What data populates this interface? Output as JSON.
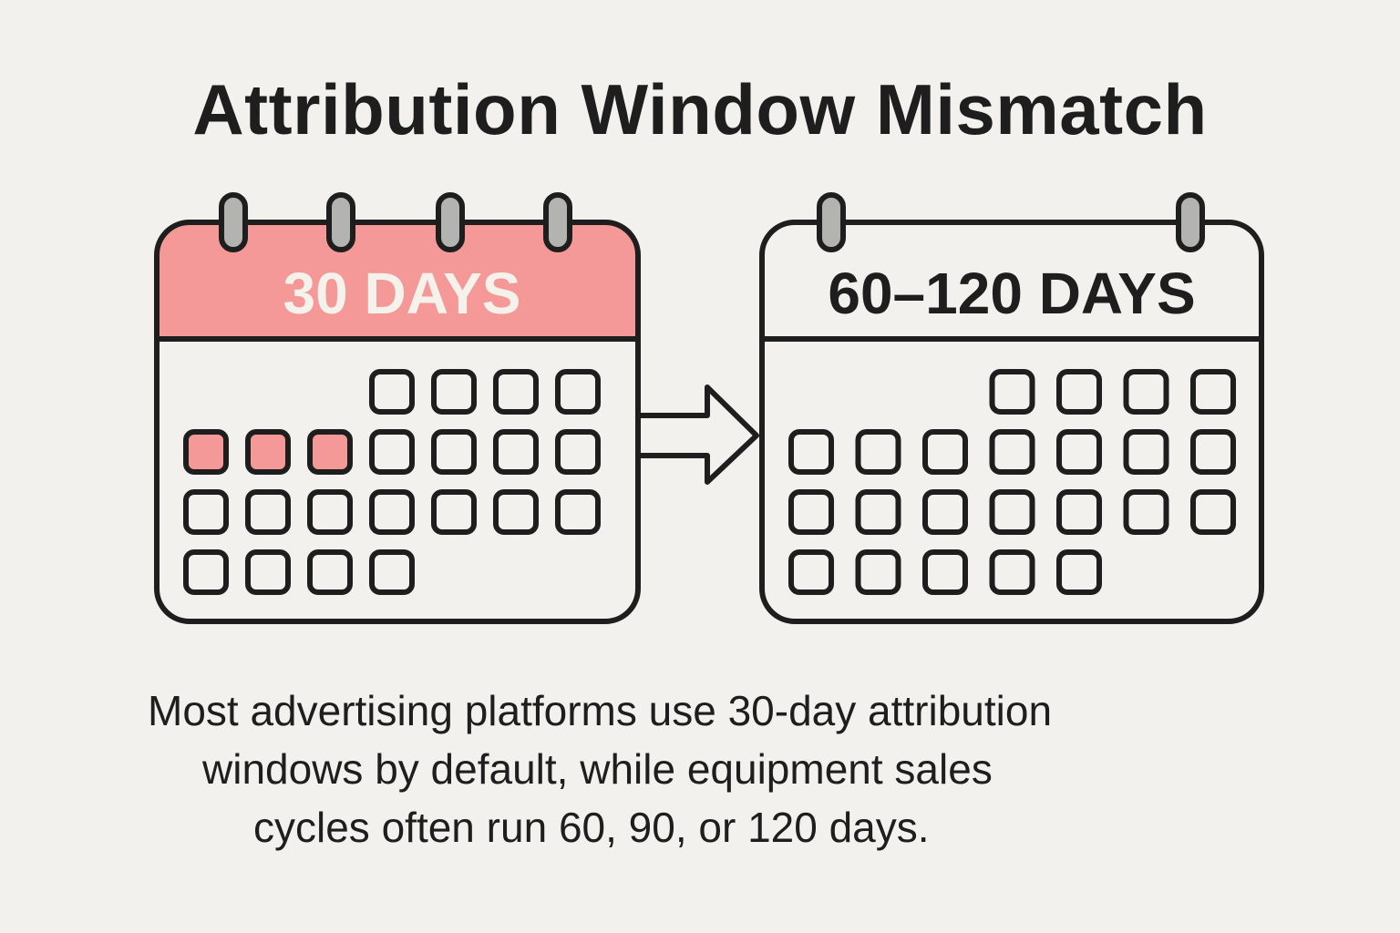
{
  "title": "Attribution Window Mismatch",
  "colors": {
    "background": "#f3f1ed",
    "ink": "#1e1e1e",
    "accent_red": "#f49898",
    "ring_gray": "#b3b3b1",
    "header_text_light": "#f5f2ec"
  },
  "calendars": [
    {
      "id": "short-window",
      "label": "30 DAYS",
      "header_fill": "#f49898",
      "label_color": "#f5f2ec",
      "rings": 4,
      "grid_rows": [
        {
          "offset": 3,
          "count": 4,
          "highlighted": []
        },
        {
          "offset": 0,
          "count": 7,
          "highlighted": [
            0,
            1,
            2
          ]
        },
        {
          "offset": 0,
          "count": 7,
          "highlighted": []
        },
        {
          "offset": 0,
          "count": 4,
          "highlighted": []
        }
      ]
    },
    {
      "id": "long-window",
      "label": "60–120 DAYS",
      "header_fill": "#f3f1ed",
      "label_color": "#1e1e1e",
      "rings": 2,
      "grid_rows": [
        {
          "offset": 3,
          "count": 4,
          "highlighted": []
        },
        {
          "offset": 0,
          "count": 7,
          "highlighted": []
        },
        {
          "offset": 0,
          "count": 7,
          "highlighted": []
        },
        {
          "offset": 0,
          "count": 5,
          "highlighted": []
        }
      ]
    }
  ],
  "arrow": {
    "icon": "arrow-right-icon",
    "direction": "right"
  },
  "caption": {
    "lines": [
      "Most advertising platforms use 30-day attribution",
      "windows by default, while equipment sales",
      "cycles often run 60, 90, or 120 days."
    ]
  }
}
